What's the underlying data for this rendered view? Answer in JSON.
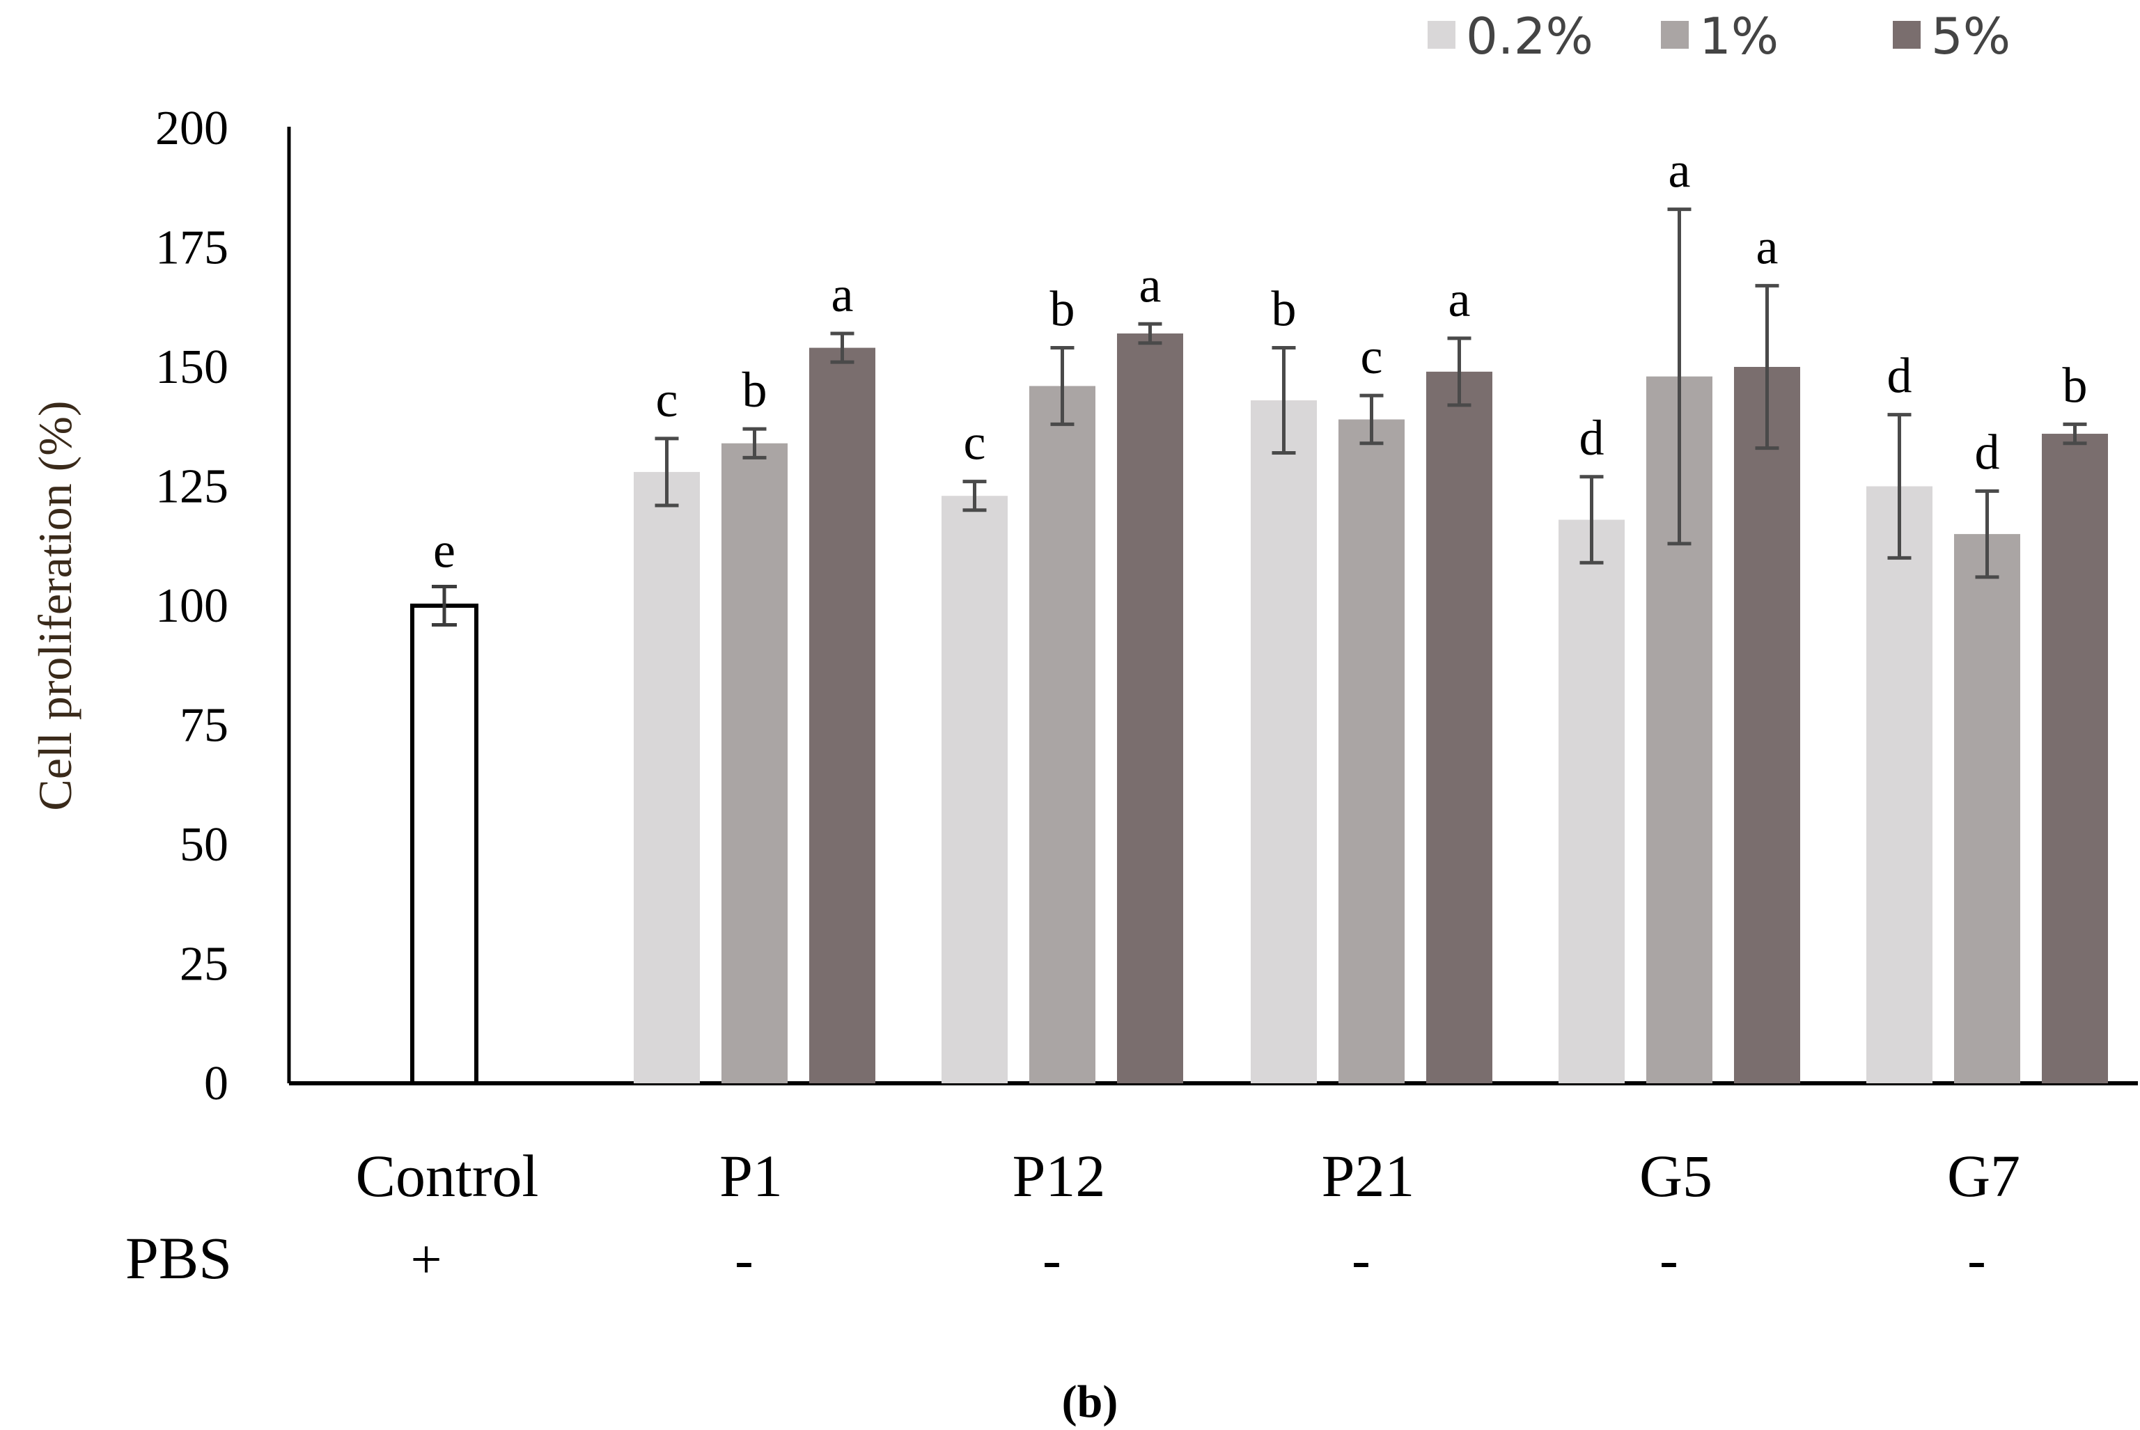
{
  "chart_data": {
    "type": "bar",
    "ylabel": "Cell proliferation  (%)",
    "ylim": [
      0,
      200
    ],
    "yticks": [
      0,
      25,
      50,
      75,
      100,
      125,
      150,
      175,
      200
    ],
    "row_label": "PBS",
    "legend_position": "top-right",
    "control": {
      "category": "Control",
      "pbs": "+",
      "value": 100,
      "err": 4,
      "letter": "e",
      "fill": "#ffffff",
      "stroke": "#000000"
    },
    "groups": [
      {
        "category": "P1",
        "pbs": "-"
      },
      {
        "category": "P12",
        "pbs": "-"
      },
      {
        "category": "P21",
        "pbs": "-"
      },
      {
        "category": "G5",
        "pbs": "-"
      },
      {
        "category": "G7",
        "pbs": "-"
      }
    ],
    "series": [
      {
        "name": "0.2%",
        "color": "#d9d7d8",
        "values": [
          128,
          123,
          143,
          118,
          125
        ],
        "errors": [
          7,
          3,
          11,
          9,
          15
        ],
        "letters": [
          "c",
          "c",
          "b",
          "d",
          "d"
        ]
      },
      {
        "name": "1%",
        "color": "#aaa5a4",
        "values": [
          134,
          146,
          139,
          148,
          115
        ],
        "errors": [
          3,
          8,
          5,
          35,
          9
        ],
        "letters": [
          "b",
          "b",
          "c",
          "a",
          "d"
        ]
      },
      {
        "name": "5%",
        "color": "#7a6e6e",
        "values": [
          154,
          157,
          149,
          150,
          136
        ],
        "errors": [
          3,
          2,
          7,
          17,
          2
        ],
        "letters": [
          "a",
          "a",
          "a",
          "a",
          "b"
        ]
      }
    ]
  },
  "figure_label": "(b)"
}
